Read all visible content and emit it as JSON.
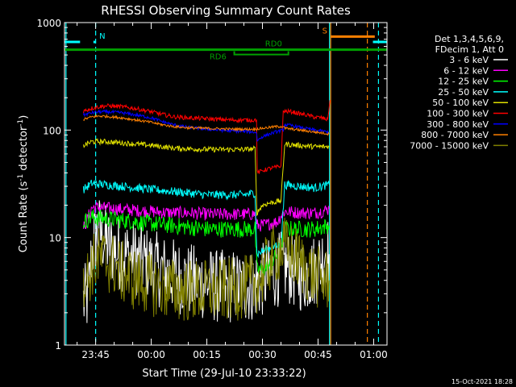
{
  "chart_data": {
    "type": "line",
    "title": "RHESSI Observing Summary Count Rates",
    "xlabel": "Start Time (29-Jul-10 23:33:22)",
    "ylabel_main": "Count Rate (s",
    "ylabel_sup1": "-1",
    "ylabel_mid": " detector",
    "ylabel_sup2": "-1",
    "ylabel_end": ")",
    "yscale": "log",
    "ylim": [
      1,
      1000
    ],
    "xlim_minutes": [
      -23.4,
      63.6
    ],
    "x_ticks": [
      {
        "m": -15,
        "label": "23:45"
      },
      {
        "m": 0,
        "label": "00:00"
      },
      {
        "m": 15,
        "label": "00:15"
      },
      {
        "m": 30,
        "label": "00:30"
      },
      {
        "m": 45,
        "label": "00:45"
      },
      {
        "m": 60,
        "label": "01:00"
      }
    ],
    "y_ticks": [
      {
        "v": 1,
        "label": "1"
      },
      {
        "v": 10,
        "label": "10"
      },
      {
        "v": 100,
        "label": "100"
      },
      {
        "v": 1000,
        "label": "1000"
      }
    ],
    "legend_header": [
      "Det 1,3,4,5,6,9,",
      "FDecim 1, Att 0"
    ],
    "series": [
      {
        "name": "3 - 6 keV",
        "color": "#ffffff",
        "noise": 0.35,
        "points": [
          [
            -18.3,
            2.5
          ],
          [
            -17,
            2.8
          ],
          [
            -16.1,
            7
          ],
          [
            -14.5,
            12
          ],
          [
            -13,
            10
          ],
          [
            -11,
            8
          ],
          [
            -8,
            7
          ],
          [
            -5,
            6.5
          ],
          [
            -2,
            6
          ],
          [
            2,
            5
          ],
          [
            6,
            4.5
          ],
          [
            10,
            4
          ],
          [
            14,
            3.8
          ],
          [
            18,
            3.5
          ],
          [
            22,
            3.5
          ],
          [
            26,
            3.5
          ],
          [
            28,
            3.7
          ],
          [
            30,
            4
          ],
          [
            32,
            4.5
          ],
          [
            34,
            5
          ],
          [
            36,
            5.5
          ],
          [
            38,
            5
          ],
          [
            40,
            4.5
          ],
          [
            42,
            4.5
          ],
          [
            44,
            5
          ],
          [
            46,
            6
          ],
          [
            47,
            8
          ],
          [
            48,
            7
          ]
        ]
      },
      {
        "name": "6 - 12 keV",
        "color": "#ff00ff",
        "noise": 0.06,
        "points": [
          [
            -18.3,
            12
          ],
          [
            -16,
            19
          ],
          [
            -14,
            19
          ],
          [
            -10,
            18.5
          ],
          [
            -5,
            18
          ],
          [
            0,
            17.5
          ],
          [
            5,
            17
          ],
          [
            10,
            17
          ],
          [
            15,
            16.5
          ],
          [
            20,
            16.5
          ],
          [
            25,
            16.5
          ],
          [
            28,
            16.5
          ],
          [
            28.5,
            13
          ],
          [
            30,
            13
          ],
          [
            34,
            14
          ],
          [
            35,
            16
          ],
          [
            36,
            17.5
          ],
          [
            40,
            17
          ],
          [
            44,
            17
          ],
          [
            46,
            17.5
          ],
          [
            48,
            18.5
          ]
        ]
      },
      {
        "name": "12 - 25 keV",
        "color": "#00ff00",
        "noise": 0.08,
        "points": [
          [
            -18.3,
            14
          ],
          [
            -16,
            15.5
          ],
          [
            -12,
            15
          ],
          [
            -8,
            14.5
          ],
          [
            -4,
            14
          ],
          [
            0,
            13.5
          ],
          [
            5,
            13
          ],
          [
            10,
            12.5
          ],
          [
            15,
            12
          ],
          [
            20,
            12
          ],
          [
            25,
            12
          ],
          [
            28,
            12
          ],
          [
            28.5,
            5
          ],
          [
            30,
            5
          ],
          [
            32,
            5.5
          ],
          [
            34,
            7
          ],
          [
            35.5,
            9.5
          ],
          [
            36,
            12
          ],
          [
            40,
            12
          ],
          [
            44,
            12
          ],
          [
            48,
            13
          ]
        ]
      },
      {
        "name": "25 - 50 keV",
        "color": "#00ffff",
        "noise": 0.04,
        "points": [
          [
            -18.3,
            28
          ],
          [
            -16,
            32
          ],
          [
            -12,
            31
          ],
          [
            -8,
            30
          ],
          [
            -4,
            29
          ],
          [
            0,
            28
          ],
          [
            5,
            27
          ],
          [
            10,
            26
          ],
          [
            15,
            25
          ],
          [
            20,
            25
          ],
          [
            25,
            25
          ],
          [
            28,
            26
          ],
          [
            28.5,
            7
          ],
          [
            30,
            7.5
          ],
          [
            32,
            8
          ],
          [
            35,
            8.5
          ],
          [
            36,
            31
          ],
          [
            40,
            30
          ],
          [
            44,
            29
          ],
          [
            48,
            31
          ]
        ]
      },
      {
        "name": "50 - 100 keV",
        "color": "#e0e000",
        "noise": 0.025,
        "points": [
          [
            -18.3,
            72
          ],
          [
            -16,
            78
          ],
          [
            -12,
            78
          ],
          [
            -8,
            76
          ],
          [
            -4,
            74
          ],
          [
            0,
            72
          ],
          [
            3,
            70
          ],
          [
            6,
            68
          ],
          [
            10,
            67
          ],
          [
            15,
            66
          ],
          [
            20,
            66
          ],
          [
            25,
            66
          ],
          [
            28,
            67
          ],
          [
            28.5,
            17
          ],
          [
            30,
            20
          ],
          [
            32,
            21
          ],
          [
            35,
            22
          ],
          [
            36,
            74
          ],
          [
            40,
            72
          ],
          [
            44,
            70
          ],
          [
            48,
            70
          ]
        ]
      },
      {
        "name": "100 - 300 keV",
        "color": "#ff0000",
        "noise": 0.02,
        "points": [
          [
            -18.3,
            150
          ],
          [
            -16,
            160
          ],
          [
            -14,
            165
          ],
          [
            -12,
            168
          ],
          [
            -8,
            165
          ],
          [
            -4,
            158
          ],
          [
            0,
            148
          ],
          [
            3,
            140
          ],
          [
            6,
            133
          ],
          [
            10,
            130
          ],
          [
            14,
            128
          ],
          [
            18,
            126
          ],
          [
            22,
            124
          ],
          [
            26,
            124
          ],
          [
            28.4,
            124
          ],
          [
            28.6,
            40
          ],
          [
            30,
            42
          ],
          [
            32,
            44
          ],
          [
            35,
            46
          ],
          [
            35.6,
            150
          ],
          [
            38,
            148
          ],
          [
            40,
            142
          ],
          [
            42,
            138
          ],
          [
            44,
            132
          ],
          [
            46,
            130
          ],
          [
            47.6,
            125
          ],
          [
            48.2,
            190
          ]
        ]
      },
      {
        "name": "300 - 800 keV",
        "color": "#0000ff",
        "noise": 0.015,
        "points": [
          [
            -18.3,
            138
          ],
          [
            -16,
            145
          ],
          [
            -14,
            148
          ],
          [
            -12,
            148
          ],
          [
            -8,
            145
          ],
          [
            -4,
            138
          ],
          [
            0,
            130
          ],
          [
            3,
            120
          ],
          [
            6,
            112
          ],
          [
            10,
            106
          ],
          [
            14,
            103
          ],
          [
            18,
            100
          ],
          [
            22,
            98
          ],
          [
            26,
            97
          ],
          [
            28.4,
            95
          ],
          [
            28.6,
            80
          ],
          [
            30,
            87
          ],
          [
            32,
            92
          ],
          [
            34,
            97
          ],
          [
            35.6,
            100
          ],
          [
            36,
            112
          ],
          [
            38,
            110
          ],
          [
            40,
            106
          ],
          [
            42,
            103
          ],
          [
            44,
            100
          ],
          [
            46,
            98
          ],
          [
            48,
            95
          ]
        ]
      },
      {
        "name": "800 - 7000 keV",
        "color": "#ff8000",
        "noise": 0.012,
        "points": [
          [
            -18.3,
            125
          ],
          [
            -16,
            133
          ],
          [
            -14,
            135
          ],
          [
            -12,
            134
          ],
          [
            -8,
            130
          ],
          [
            -4,
            124
          ],
          [
            0,
            118
          ],
          [
            3,
            112
          ],
          [
            6,
            108
          ],
          [
            10,
            105
          ],
          [
            14,
            104
          ],
          [
            18,
            103
          ],
          [
            22,
            102
          ],
          [
            26,
            102
          ],
          [
            28,
            102
          ],
          [
            30,
            104
          ],
          [
            32,
            106
          ],
          [
            34,
            108
          ],
          [
            35.6,
            108
          ],
          [
            36,
            104
          ],
          [
            38,
            102
          ],
          [
            40,
            100
          ],
          [
            42,
            98
          ],
          [
            44,
            96
          ],
          [
            46,
            94
          ],
          [
            48,
            92
          ]
        ]
      },
      {
        "name": "7000 - 15000 keV",
        "color": "#808000",
        "noise": 0.3,
        "points": [
          [
            -18.3,
            4.5
          ],
          [
            -17,
            4.2
          ],
          [
            -16,
            5.5
          ],
          [
            -14,
            6.5
          ],
          [
            -12,
            6
          ],
          [
            -10,
            5.5
          ],
          [
            -7,
            4.5
          ],
          [
            -4,
            4
          ],
          [
            -1,
            3.8
          ],
          [
            2,
            3.5
          ],
          [
            6,
            3.3
          ],
          [
            10,
            3.2
          ],
          [
            14,
            3.2
          ],
          [
            18,
            3.2
          ],
          [
            22,
            3.3
          ],
          [
            26,
            3.5
          ],
          [
            28,
            3.7
          ],
          [
            30,
            4.5
          ],
          [
            32,
            6
          ],
          [
            34,
            7.5
          ],
          [
            36,
            8
          ],
          [
            38,
            7
          ],
          [
            40,
            6
          ],
          [
            42,
            5
          ],
          [
            44,
            4.5
          ],
          [
            46,
            4
          ],
          [
            48,
            4
          ]
        ]
      }
    ],
    "flag_bars": [
      {
        "label": "N",
        "color": "#00ffff",
        "y_value": 660,
        "segments": [
          [
            -23.4,
            -19.2
          ],
          [
            -15.6,
            -14.9
          ]
        ],
        "label_at": -13.2
      },
      {
        "label": "S",
        "color": "#ff8000",
        "y_value": 740,
        "segments": [
          [
            48.3,
            60.3
          ]
        ],
        "label_at": 46.8
      },
      {
        "label": "",
        "color": "#00ffff",
        "y_value": 660,
        "segments": [
          [
            59.8,
            63.6
          ]
        ],
        "label_at": null
      },
      {
        "label": "RD0",
        "color": "#00a000",
        "y_value": 560,
        "segments": [
          [
            -23.4,
            63.6
          ]
        ],
        "label_at": 33.0
      }
    ],
    "rd_marker": {
      "label": "RD6",
      "label_at": 18.0,
      "bracket": [
        22.4,
        37.0
      ]
    },
    "vlines": [
      {
        "m": -23.0,
        "color": "#00ffff",
        "style": "solid"
      },
      {
        "m": -15.0,
        "color": "#00ffff",
        "style": "dashed"
      },
      {
        "m": 48.1,
        "color": "#00ffff",
        "style": "solid"
      },
      {
        "m": 48.4,
        "color": "#ff8000",
        "style": "solid"
      },
      {
        "m": 58.3,
        "color": "#ff8000",
        "style": "dashed"
      },
      {
        "m": 61.3,
        "color": "#00ffff",
        "style": "dashed"
      }
    ]
  },
  "timestamp": "15-Oct-2021 18:28"
}
